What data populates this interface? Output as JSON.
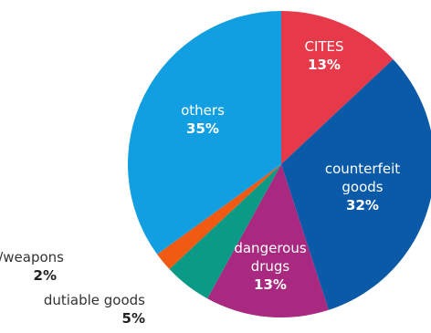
{
  "chart_data": {
    "type": "pie",
    "title": "",
    "start_angle_deg": 0,
    "direction": "clockwise",
    "slices": [
      {
        "key": "cites",
        "label_lines": [
          "CITES"
        ],
        "value": 13,
        "value_label": "13%",
        "color": "#e63a4b",
        "label_placement": "inside"
      },
      {
        "key": "counterfeit",
        "label_lines": [
          "counterfeit",
          "goods"
        ],
        "value": 32,
        "value_label": "32%",
        "color": "#0a5aa8",
        "label_placement": "inside"
      },
      {
        "key": "dangerous",
        "label_lines": [
          "dangerous",
          "drugs"
        ],
        "value": 13,
        "value_label": "13%",
        "color": "#a8297f",
        "label_placement": "inside"
      },
      {
        "key": "dutiable",
        "label_lines": [
          "dutiable goods"
        ],
        "value": 5,
        "value_label": "5%",
        "color": "#0b9a86",
        "label_placement": "outside"
      },
      {
        "key": "firearms",
        "label_lines": [
          "firearms/weapons"
        ],
        "value": 2,
        "value_label": "2%",
        "color": "#f05a12",
        "label_placement": "outside"
      },
      {
        "key": "others",
        "label_lines": [
          "others"
        ],
        "value": 35,
        "value_label": "35%",
        "color": "#129fe1",
        "label_placement": "inside"
      }
    ]
  }
}
